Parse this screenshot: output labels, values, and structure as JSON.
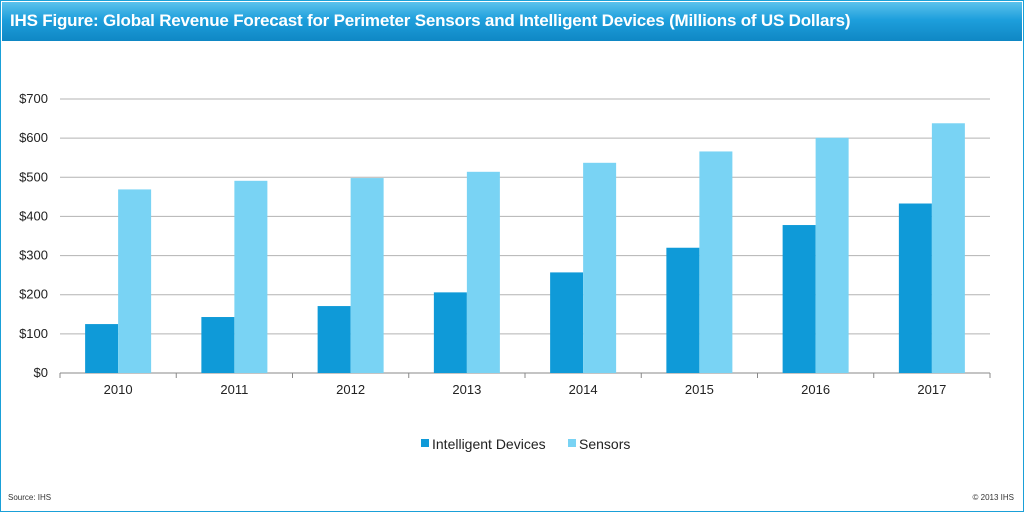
{
  "header": {
    "title": "IHS Figure: Global Revenue Forecast for Perimeter Sensors and Intelligent Devices (Millions of US Dollars)"
  },
  "footer": {
    "source": "Source: IHS",
    "copyright": "© 2013 IHS"
  },
  "colors": {
    "title_bar": "#1e9fdc",
    "intelligent_devices": "#0f9ad8",
    "sensors": "#79d3f4",
    "gridline": "#b3b3b3"
  },
  "chart_data": {
    "type": "bar",
    "title": "IHS Figure: Global Revenue Forecast for Perimeter Sensors and Intelligent Devices (Millions of US Dollars)",
    "xlabel": "",
    "ylabel": "",
    "categories": [
      "2010",
      "2011",
      "2012",
      "2013",
      "2014",
      "2015",
      "2016",
      "2017"
    ],
    "series": [
      {
        "name": "Intelligent Devices",
        "values": [
          125,
          143,
          171,
          206,
          257,
          320,
          378,
          433
        ]
      },
      {
        "name": "Sensors",
        "values": [
          469,
          491,
          498,
          514,
          537,
          566,
          601,
          638
        ]
      }
    ],
    "ylim": [
      0,
      700
    ],
    "yticks": [
      0,
      100,
      200,
      300,
      400,
      500,
      600,
      700
    ],
    "ytick_labels": [
      "$0",
      "$100",
      "$200",
      "$300",
      "$400",
      "$500",
      "$600",
      "$700"
    ],
    "grid": true,
    "legend": "bottom"
  }
}
